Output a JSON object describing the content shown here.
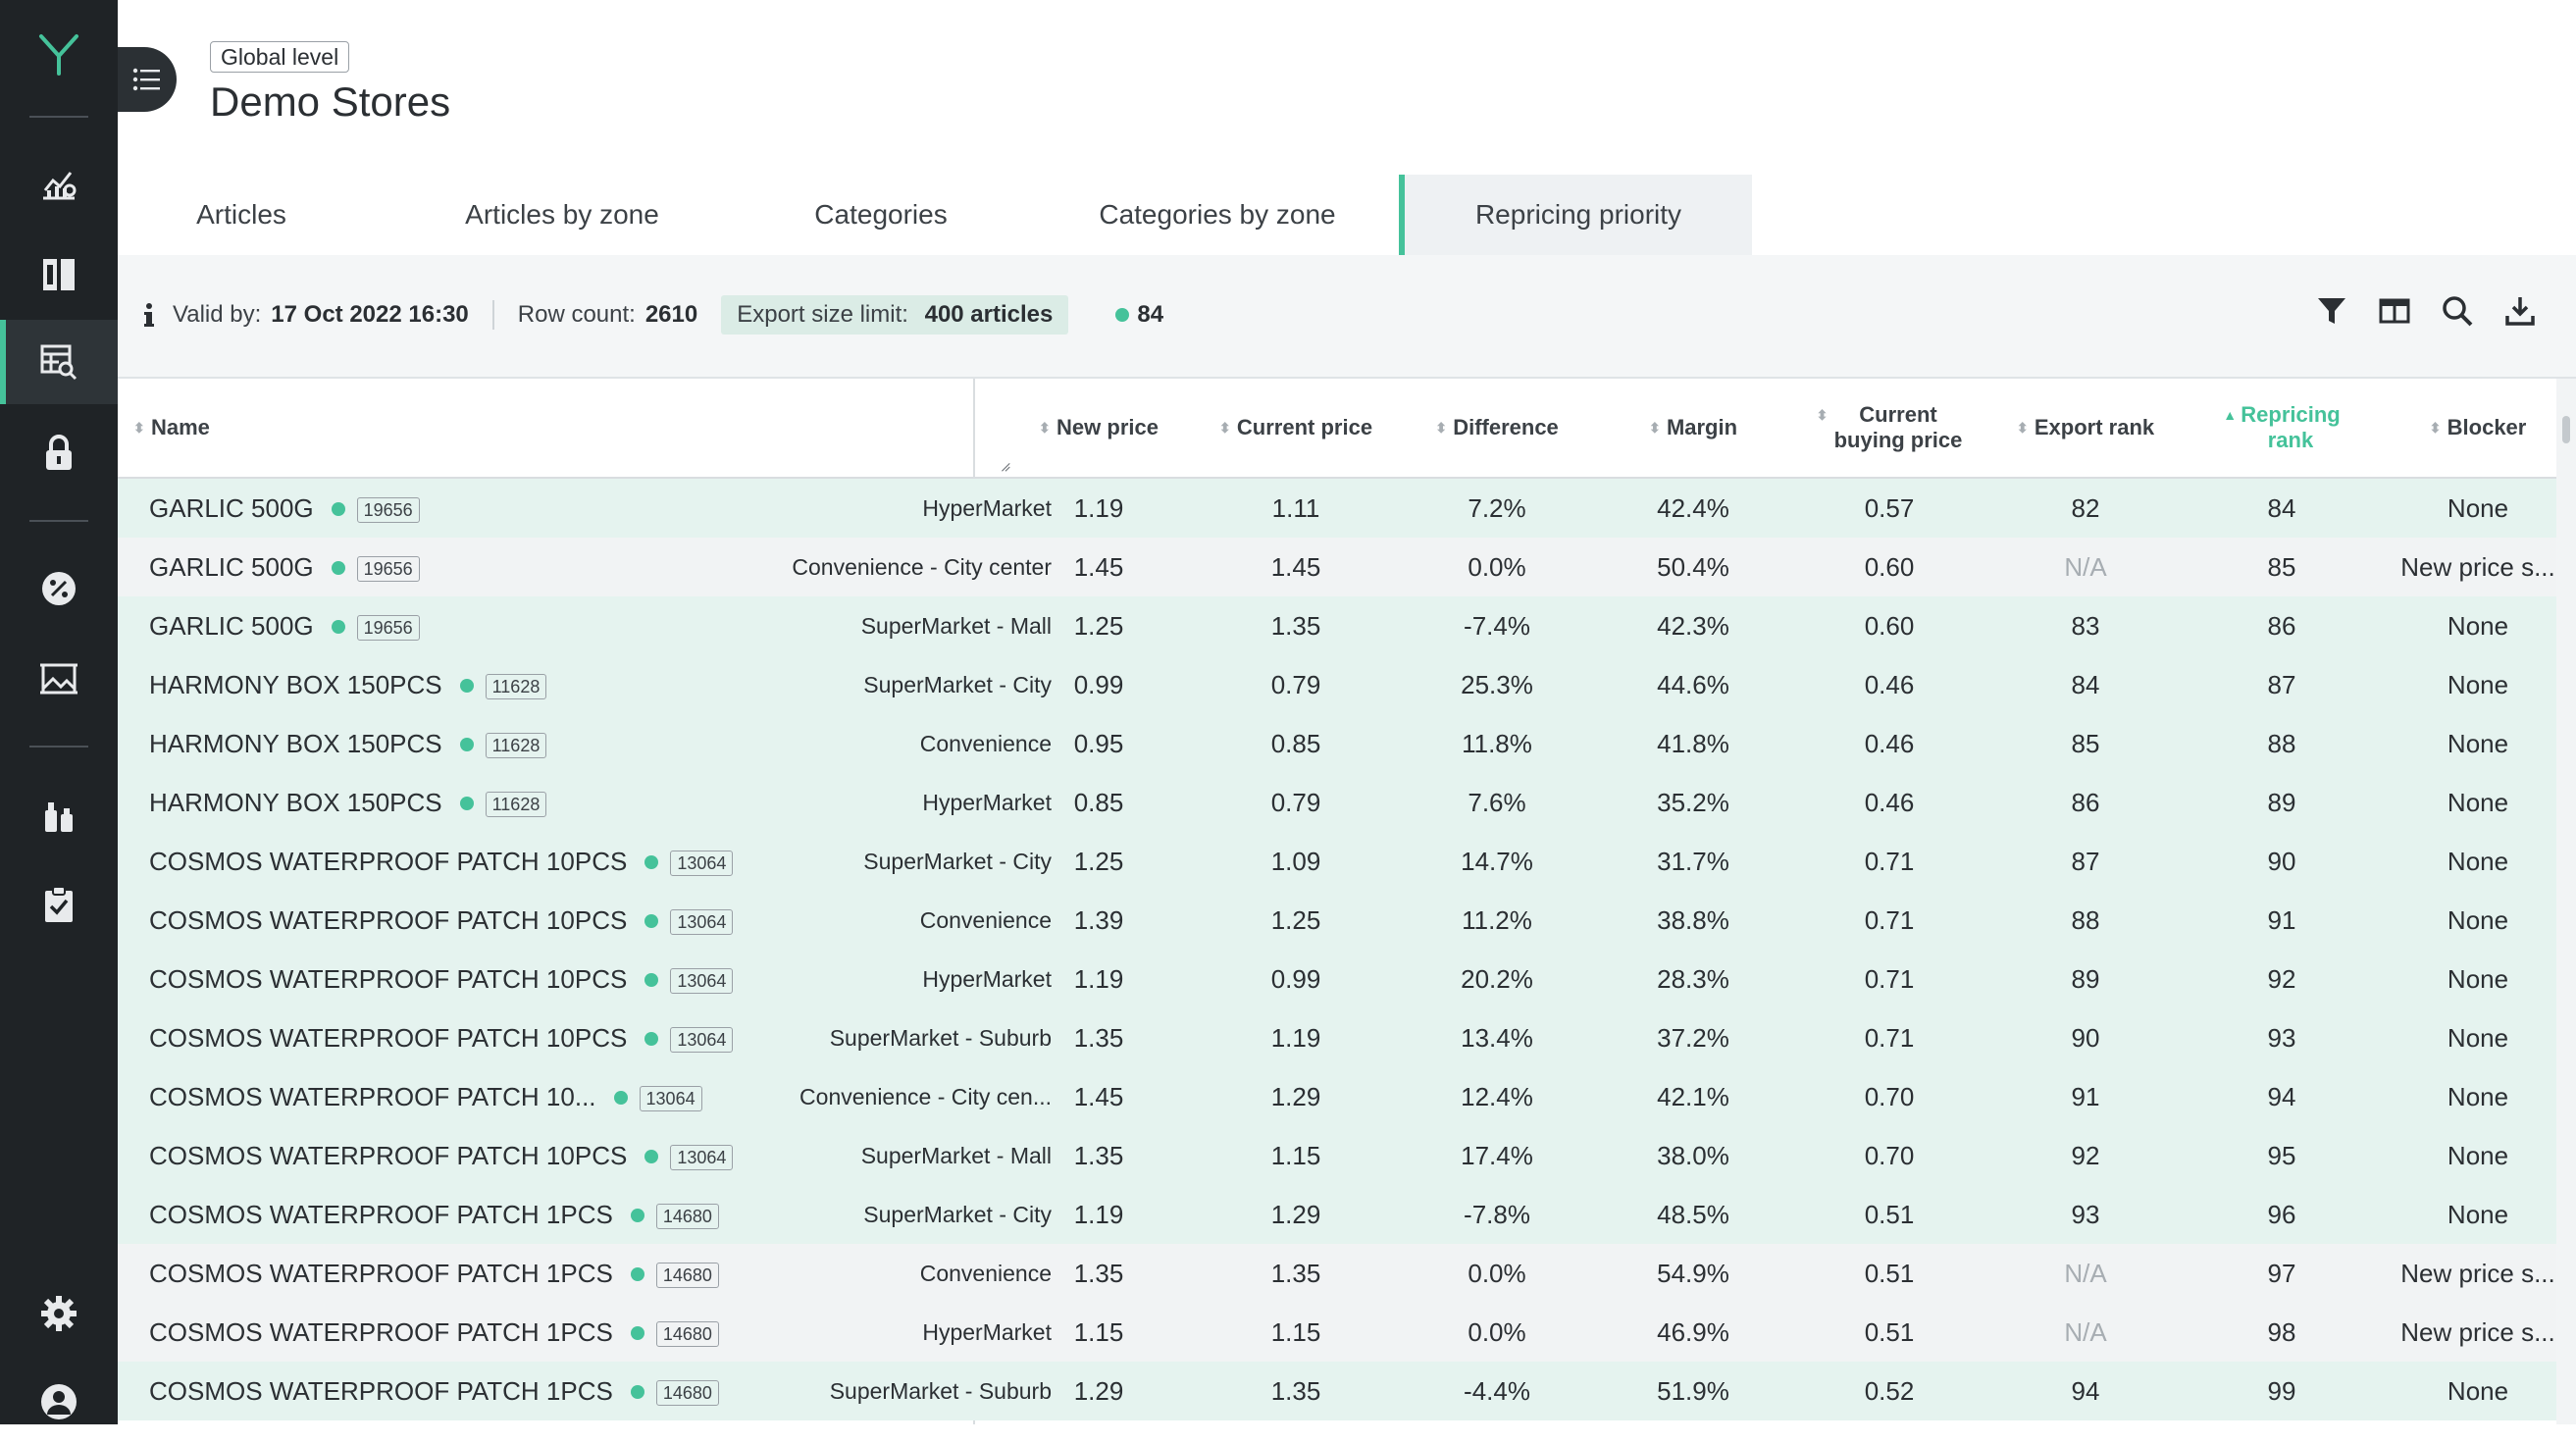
{
  "app": {
    "logo_letter": "Y"
  },
  "sidebar": {
    "items": [
      {
        "name": "analytics-icon"
      },
      {
        "name": "columns-icon"
      },
      {
        "name": "table-search-icon",
        "active": true
      },
      {
        "name": "lock-icon"
      },
      {
        "name": "discount-icon"
      },
      {
        "name": "image-frame-icon"
      },
      {
        "name": "bottles-icon"
      },
      {
        "name": "clipboard-check-icon"
      },
      {
        "name": "gear-icon"
      },
      {
        "name": "user-icon"
      }
    ]
  },
  "header": {
    "level_badge": "Global level",
    "title": "Demo Stores"
  },
  "tabs": [
    {
      "label": "Articles"
    },
    {
      "label": "Articles by zone"
    },
    {
      "label": "Categories"
    },
    {
      "label": "Categories by zone"
    },
    {
      "label": "Repricing priority",
      "active": true
    }
  ],
  "toolbar": {
    "valid_by_label": "Valid by:",
    "valid_by_value": "17 Oct 2022 16:30",
    "row_count_label": "Row count:",
    "row_count_value": "2610",
    "export_limit_label": "Export size limit:",
    "export_limit_value": "400 articles",
    "status_count": "84",
    "icons": [
      "filter-icon",
      "columns-toggle-icon",
      "search-icon",
      "download-icon"
    ]
  },
  "table": {
    "headers": {
      "name": "Name",
      "new_price": "New price",
      "current_price": "Current price",
      "difference": "Difference",
      "margin": "Margin",
      "buying_price_1": "Current",
      "buying_price_2": "buying price",
      "export_rank": "Export rank",
      "repricing_rank_1": "Repricing",
      "repricing_rank_2": "rank",
      "blocker": "Blocker"
    },
    "rows": [
      {
        "name": "GARLIC 500G",
        "code": "19656",
        "zone": "HyperMarket",
        "new_price": "1.19",
        "current_price": "1.11",
        "difference": "7.2%",
        "margin": "42.4%",
        "buying_price": "0.57",
        "export_rank": "82",
        "repricing_rank": "84",
        "blocker": "None"
      },
      {
        "name": "GARLIC 500G",
        "code": "19656",
        "zone": "Convenience - City center",
        "new_price": "1.45",
        "current_price": "1.45",
        "difference": "0.0%",
        "margin": "50.4%",
        "buying_price": "0.60",
        "export_rank": "N/A",
        "repricing_rank": "85",
        "blocker": "New price s..."
      },
      {
        "name": "GARLIC 500G",
        "code": "19656",
        "zone": "SuperMarket - Mall",
        "new_price": "1.25",
        "current_price": "1.35",
        "difference": "-7.4%",
        "margin": "42.3%",
        "buying_price": "0.60",
        "export_rank": "83",
        "repricing_rank": "86",
        "blocker": "None"
      },
      {
        "name": "HARMONY BOX 150PCS",
        "code": "11628",
        "zone": "SuperMarket - City",
        "new_price": "0.99",
        "current_price": "0.79",
        "difference": "25.3%",
        "margin": "44.6%",
        "buying_price": "0.46",
        "export_rank": "84",
        "repricing_rank": "87",
        "blocker": "None"
      },
      {
        "name": "HARMONY BOX 150PCS",
        "code": "11628",
        "zone": "Convenience",
        "new_price": "0.95",
        "current_price": "0.85",
        "difference": "11.8%",
        "margin": "41.8%",
        "buying_price": "0.46",
        "export_rank": "85",
        "repricing_rank": "88",
        "blocker": "None"
      },
      {
        "name": "HARMONY BOX 150PCS",
        "code": "11628",
        "zone": "HyperMarket",
        "new_price": "0.85",
        "current_price": "0.79",
        "difference": "7.6%",
        "margin": "35.2%",
        "buying_price": "0.46",
        "export_rank": "86",
        "repricing_rank": "89",
        "blocker": "None"
      },
      {
        "name": "COSMOS WATERPROOF PATCH 10PCS",
        "code": "13064",
        "zone": "SuperMarket - City",
        "new_price": "1.25",
        "current_price": "1.09",
        "difference": "14.7%",
        "margin": "31.7%",
        "buying_price": "0.71",
        "export_rank": "87",
        "repricing_rank": "90",
        "blocker": "None"
      },
      {
        "name": "COSMOS WATERPROOF PATCH 10PCS",
        "code": "13064",
        "zone": "Convenience",
        "new_price": "1.39",
        "current_price": "1.25",
        "difference": "11.2%",
        "margin": "38.8%",
        "buying_price": "0.71",
        "export_rank": "88",
        "repricing_rank": "91",
        "blocker": "None"
      },
      {
        "name": "COSMOS WATERPROOF PATCH 10PCS",
        "code": "13064",
        "zone": "HyperMarket",
        "new_price": "1.19",
        "current_price": "0.99",
        "difference": "20.2%",
        "margin": "28.3%",
        "buying_price": "0.71",
        "export_rank": "89",
        "repricing_rank": "92",
        "blocker": "None"
      },
      {
        "name": "COSMOS WATERPROOF PATCH 10PCS",
        "code": "13064",
        "zone": "SuperMarket - Suburb",
        "new_price": "1.35",
        "current_price": "1.19",
        "difference": "13.4%",
        "margin": "37.2%",
        "buying_price": "0.71",
        "export_rank": "90",
        "repricing_rank": "93",
        "blocker": "None"
      },
      {
        "name": "COSMOS WATERPROOF PATCH 10...",
        "code": "13064",
        "zone": "Convenience - City cen...",
        "new_price": "1.45",
        "current_price": "1.29",
        "difference": "12.4%",
        "margin": "42.1%",
        "buying_price": "0.70",
        "export_rank": "91",
        "repricing_rank": "94",
        "blocker": "None"
      },
      {
        "name": "COSMOS WATERPROOF PATCH 10PCS",
        "code": "13064",
        "zone": "SuperMarket - Mall",
        "new_price": "1.35",
        "current_price": "1.15",
        "difference": "17.4%",
        "margin": "38.0%",
        "buying_price": "0.70",
        "export_rank": "92",
        "repricing_rank": "95",
        "blocker": "None"
      },
      {
        "name": "COSMOS WATERPROOF PATCH 1PCS",
        "code": "14680",
        "zone": "SuperMarket - City",
        "new_price": "1.19",
        "current_price": "1.29",
        "difference": "-7.8%",
        "margin": "48.5%",
        "buying_price": "0.51",
        "export_rank": "93",
        "repricing_rank": "96",
        "blocker": "None"
      },
      {
        "name": "COSMOS WATERPROOF PATCH 1PCS",
        "code": "14680",
        "zone": "Convenience",
        "new_price": "1.35",
        "current_price": "1.35",
        "difference": "0.0%",
        "margin": "54.9%",
        "buying_price": "0.51",
        "export_rank": "N/A",
        "repricing_rank": "97",
        "blocker": "New price s..."
      },
      {
        "name": "COSMOS WATERPROOF PATCH 1PCS",
        "code": "14680",
        "zone": "HyperMarket",
        "new_price": "1.15",
        "current_price": "1.15",
        "difference": "0.0%",
        "margin": "46.9%",
        "buying_price": "0.51",
        "export_rank": "N/A",
        "repricing_rank": "98",
        "blocker": "New price s..."
      },
      {
        "name": "COSMOS WATERPROOF PATCH 1PCS",
        "code": "14680",
        "zone": "SuperMarket - Suburb",
        "new_price": "1.29",
        "current_price": "1.35",
        "difference": "-4.4%",
        "margin": "51.9%",
        "buying_price": "0.52",
        "export_rank": "94",
        "repricing_rank": "99",
        "blocker": "None"
      }
    ]
  },
  "colors": {
    "accent": "#45c29a",
    "sidebar": "#1f2326",
    "row_highlight": "#e5f3ef",
    "row_plain": "#f1f3f4"
  }
}
